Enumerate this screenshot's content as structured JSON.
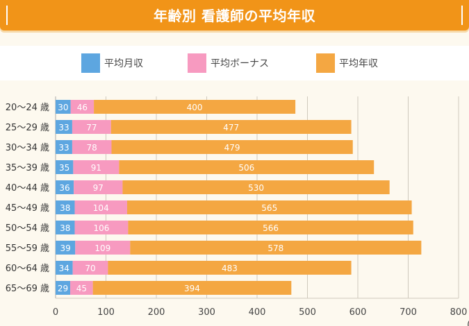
{
  "header": {
    "title": "年齢別 看護師の平均年収"
  },
  "legend": [
    {
      "label": "平均月収",
      "color": "#5da6e0"
    },
    {
      "label": "平均ボーナス",
      "color": "#f79ac0"
    },
    {
      "label": "平均年収",
      "color": "#f4a742"
    }
  ],
  "chart_data": {
    "type": "bar",
    "orientation": "horizontal",
    "stacked": true,
    "title": "年齢別 看護師の平均年収",
    "categories": [
      "20〜24 歳",
      "25〜29 歳",
      "30〜34 歳",
      "35〜39 歳",
      "40〜44 歳",
      "45〜49 歳",
      "50〜54 歳",
      "55〜59 歳",
      "60〜64 歳",
      "65〜69 歳"
    ],
    "series": [
      {
        "name": "平均月収",
        "color": "#5da6e0",
        "values": [
          30,
          33,
          33,
          35,
          36,
          38,
          38,
          39,
          34,
          29
        ]
      },
      {
        "name": "平均ボーナス",
        "color": "#f79ac0",
        "values": [
          46,
          77,
          78,
          91,
          97,
          104,
          106,
          109,
          70,
          45
        ]
      },
      {
        "name": "平均年収",
        "color": "#f4a742",
        "values": [
          400,
          477,
          479,
          506,
          530,
          565,
          566,
          578,
          483,
          394
        ]
      }
    ],
    "xlim": [
      0,
      800
    ],
    "xticks": [
      0,
      100,
      200,
      300,
      400,
      500,
      600,
      700,
      800
    ],
    "xunit": "(",
    "grid": true,
    "legend_position": "top"
  }
}
